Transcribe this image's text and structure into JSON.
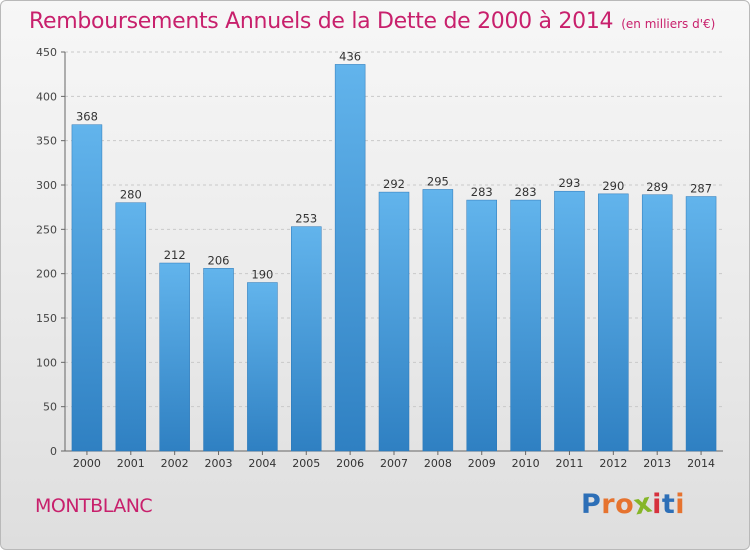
{
  "header": {
    "title": "Remboursements Annuels de la Dette de 2000 à 2014",
    "unit": "(en milliers d'€)"
  },
  "footer": {
    "place": "MONTBLANC",
    "brand_letters": [
      "P",
      "r",
      "o",
      "x",
      "i",
      "t",
      "i"
    ]
  },
  "colors": {
    "title": "#c8206c",
    "bar_light": "#62b4ec",
    "bar_dark": "#2f80c2",
    "brand": [
      "#2d6fb7",
      "#e6732f",
      "#e6732f",
      "#86b629",
      "#d6313e",
      "#2d6fb7",
      "#e6732f"
    ]
  },
  "chart_data": {
    "type": "bar",
    "title": "Remboursements Annuels de la Dette de 2000 à 2014",
    "categories": [
      "2000",
      "2001",
      "2002",
      "2003",
      "2004",
      "2005",
      "2006",
      "2007",
      "2008",
      "2009",
      "2010",
      "2011",
      "2012",
      "2013",
      "2014"
    ],
    "values": [
      368,
      280,
      212,
      206,
      190,
      253,
      436,
      292,
      295,
      283,
      283,
      293,
      290,
      289,
      287
    ],
    "ylim": [
      0,
      450
    ],
    "yticks": [
      0,
      50,
      100,
      150,
      200,
      250,
      300,
      350,
      400,
      450
    ],
    "grid": true,
    "legend": "none"
  }
}
